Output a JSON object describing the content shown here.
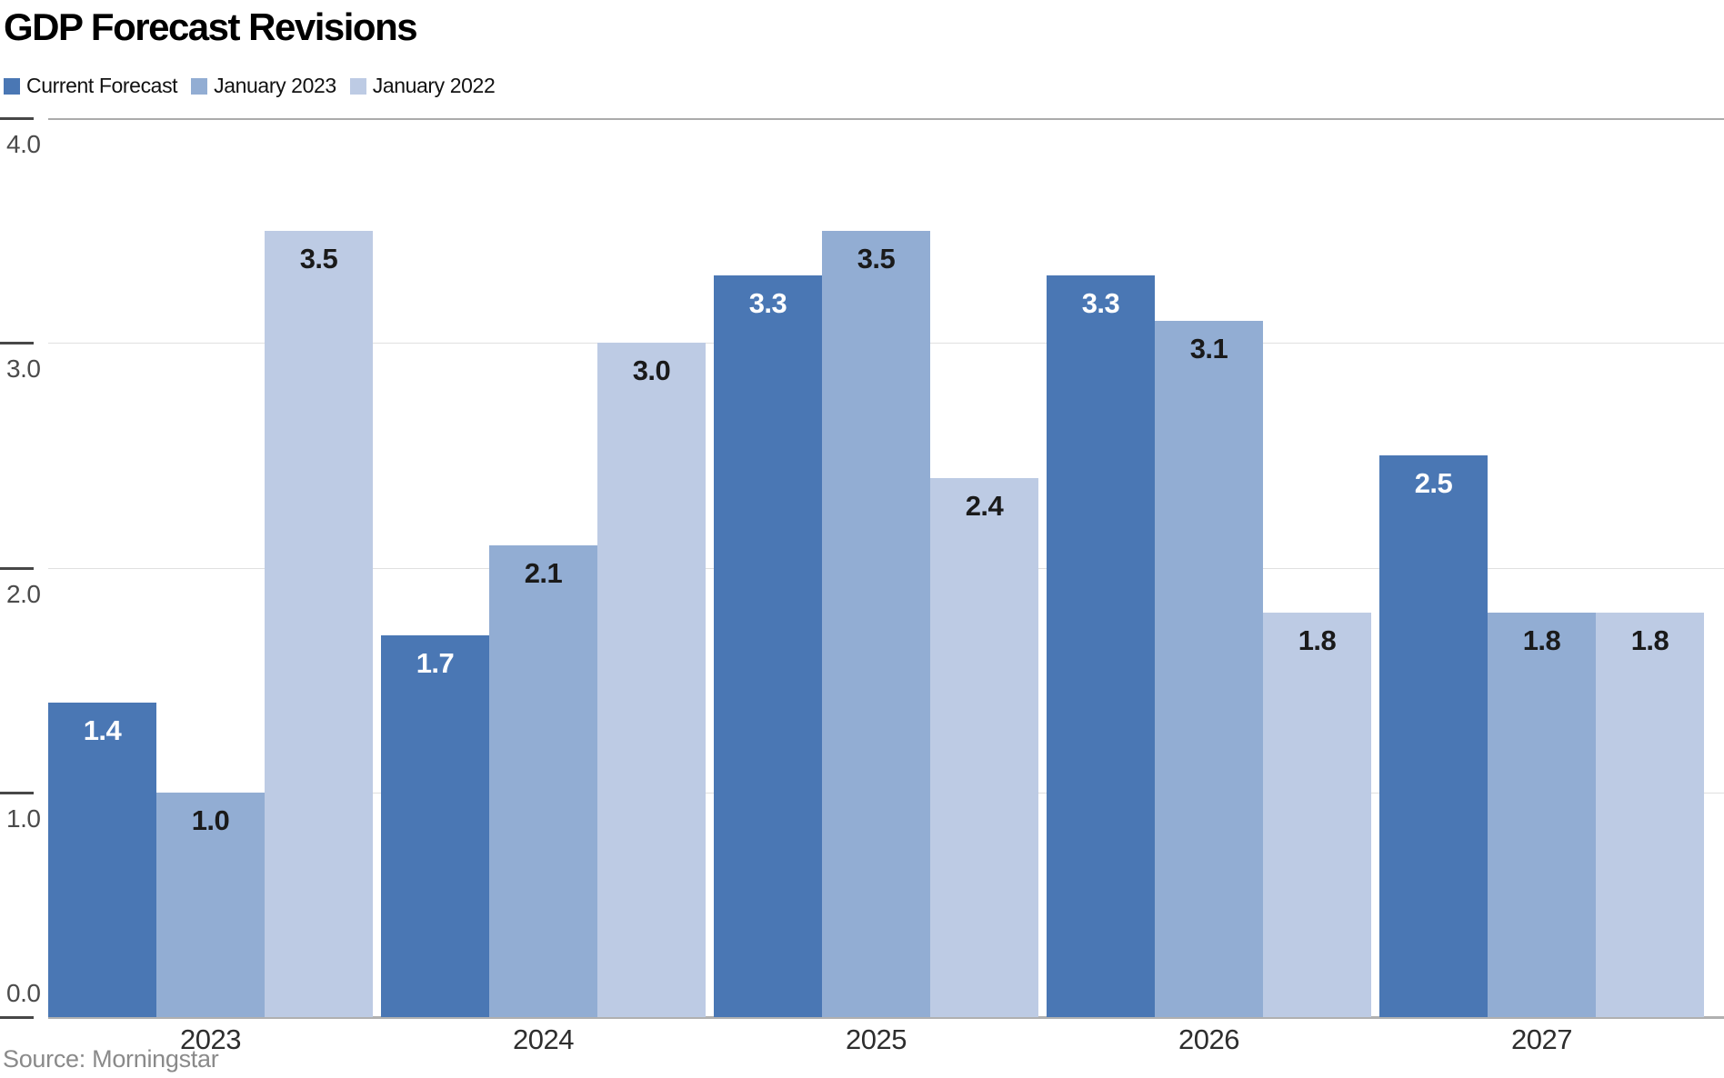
{
  "header": {
    "title": "GDP Forecast Revisions"
  },
  "footer": {
    "source": "Source: Morningstar"
  },
  "chart_data": {
    "type": "bar",
    "title": "GDP Forecast Revisions",
    "categories": [
      "2023",
      "2024",
      "2025",
      "2026",
      "2027"
    ],
    "series": [
      {
        "name": "Current Forecast",
        "color": "#4a77b4",
        "label_color": "#ffffff",
        "values": [
          1.4,
          1.7,
          3.3,
          3.3,
          2.5
        ]
      },
      {
        "name": "January 2023",
        "color": "#92add3",
        "label_color": "#1a1a1a",
        "values": [
          1.0,
          2.1,
          3.5,
          3.1,
          1.8
        ]
      },
      {
        "name": "January 2022",
        "color": "#bdcbe4",
        "label_color": "#1a1a1a",
        "values": [
          3.5,
          3.0,
          2.4,
          1.8,
          1.8
        ]
      }
    ],
    "y_ticks": [
      "4.0",
      "3.0",
      "2.0",
      "1.0",
      "0.0"
    ],
    "ylim": [
      0,
      4
    ],
    "grid": true,
    "legend_position": "top-left",
    "xlabel": "",
    "ylabel": "",
    "source": "Source: Morningstar"
  }
}
